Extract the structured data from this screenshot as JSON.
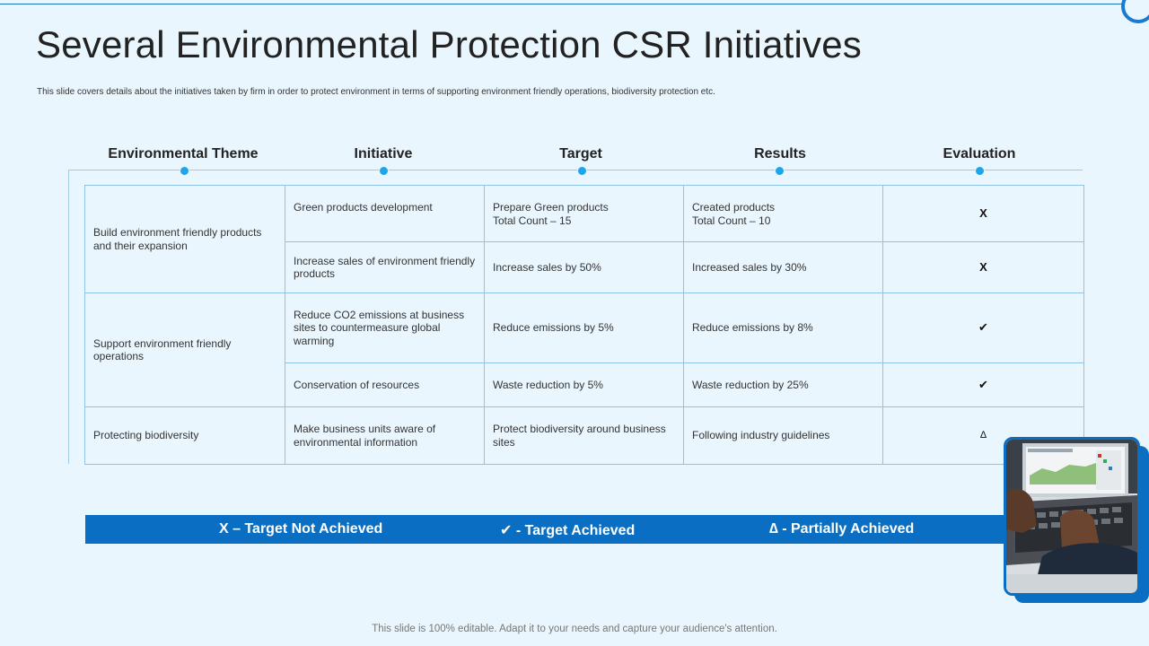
{
  "title": "Several Environmental Protection CSR Initiatives",
  "subtitle": "This slide covers details about the initiatives taken by firm in order to protect environment in terms of supporting environment friendly operations, biodiversity protection etc.",
  "columns": [
    "Environmental Theme",
    "Initiative",
    "Target",
    "Results",
    "Evaluation"
  ],
  "rows": [
    {
      "theme": "Build environment friendly products and their expansion",
      "initiative": "Green products development",
      "target_line1": "Prepare Green products",
      "target_line2": "Total Count – 15",
      "result_line1": "Created products",
      "result_line2": "Total Count – 10",
      "evaluation": "X"
    },
    {
      "initiative": "Increase sales of environment friendly products",
      "target": "Increase sales by 50%",
      "result": "Increased sales by 30%",
      "evaluation": "X"
    },
    {
      "theme": "Support environment friendly operations",
      "initiative": "Reduce CO2 emissions at business sites to countermeasure global warming",
      "target": "Reduce emissions by 5%",
      "result": "Reduce emissions by 8%",
      "evaluation": "✔"
    },
    {
      "initiative": "Conservation of resources",
      "target": "Waste reduction by 5%",
      "result": "Waste reduction by 25%",
      "evaluation": "✔"
    },
    {
      "theme": "Protecting biodiversity",
      "initiative": "Make business units aware of environmental information",
      "target": "Protect biodiversity around business sites",
      "result": "Following industry guidelines",
      "evaluation": "∆"
    }
  ],
  "legend": {
    "not_achieved": "X – Target Not Achieved",
    "achieved": "✔ - Target Achieved",
    "partial": "∆ - Partially Achieved"
  },
  "image": {
    "description_icon": "laptop-photo-icon"
  },
  "footer": "This slide is 100% editable. Adapt it to your needs and capture your audience's attention.",
  "colors": {
    "accent": "#0a6fc2",
    "background": "#eaf6fd",
    "dot": "#1ea5e9",
    "border": "#8fc4e6"
  }
}
